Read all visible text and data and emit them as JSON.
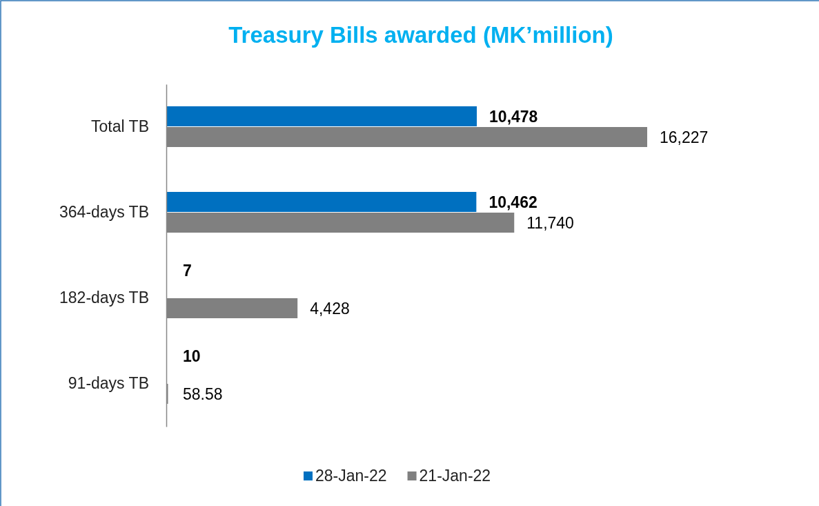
{
  "chart_data": {
    "type": "bar",
    "orientation": "horizontal",
    "title": "Treasury Bills awarded (MK’million)",
    "categories": [
      "Total TB",
      "364-days TB",
      "182-days TB",
      "91-days TB"
    ],
    "series": [
      {
        "name": "28-Jan-22",
        "color": "#0070c0",
        "values": [
          10478,
          10462,
          7,
          10
        ],
        "value_labels": [
          "10,478",
          "10,462",
          "7",
          "10"
        ]
      },
      {
        "name": "21-Jan-22",
        "color": "#808080",
        "values": [
          16227,
          11740,
          4428,
          58.58
        ],
        "value_labels": [
          "16,227",
          "11,740",
          "4,428",
          "58.58"
        ]
      }
    ],
    "tick_labels": "y",
    "legend": "bottom"
  }
}
